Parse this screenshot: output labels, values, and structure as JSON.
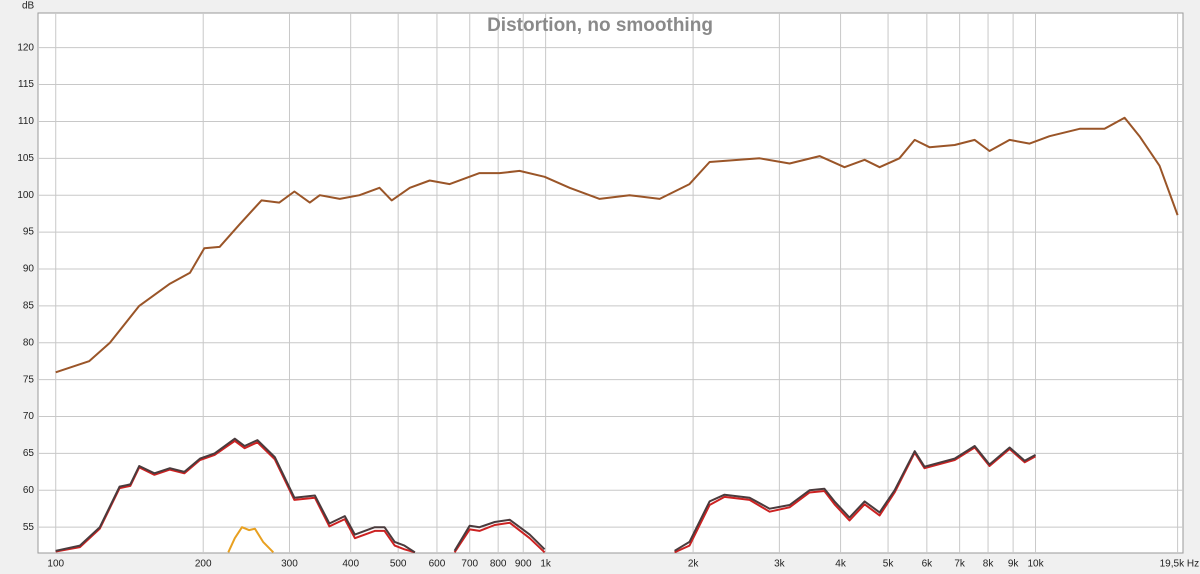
{
  "chart_data": {
    "type": "line",
    "title": "Distortion, no smoothing",
    "y_label": "dB",
    "log_x": true,
    "grid": true,
    "xlim": [
      92,
      20000
    ],
    "ylim": [
      51.5,
      124.7
    ],
    "xticks": [
      100,
      200,
      300,
      400,
      500,
      600,
      700,
      800,
      900,
      {
        "value": 1000,
        "label": "1k"
      },
      {
        "value": 2000,
        "label": "2k"
      },
      {
        "value": 3000,
        "label": "3k"
      },
      {
        "value": 4000,
        "label": "4k"
      },
      {
        "value": 5000,
        "label": "5k"
      },
      {
        "value": 6000,
        "label": "6k"
      },
      {
        "value": 7000,
        "label": "7k"
      },
      {
        "value": 8000,
        "label": "8k"
      },
      {
        "value": 9000,
        "label": "9k"
      },
      {
        "value": 10000,
        "label": "10k"
      },
      {
        "value": 19500,
        "label": "19,5k Hz"
      }
    ],
    "yticks": [
      55,
      60,
      65,
      70,
      75,
      80,
      85,
      90,
      95,
      100,
      105,
      110,
      115,
      120
    ],
    "series": [
      {
        "color": "#9a5528",
        "x": [
          100,
          117,
          129,
          148,
          171,
          188,
          201,
          216,
          237,
          263,
          286,
          307,
          330,
          346,
          380,
          417,
          458,
          485,
          528,
          580,
          637,
          733,
          806,
          885,
          995,
          1119,
          1289,
          1483,
          1709,
          1966,
          2161,
          2734,
          3147,
          3624,
          4074,
          4478,
          4806,
          5275,
          5666,
          6081,
          6839,
          7515,
          8054,
          8851,
          9725,
          10680,
          12310,
          13830,
          15200,
          16300,
          17910,
          19500
        ],
        "values": [
          76,
          77.5,
          80,
          85,
          88,
          89.5,
          92.8,
          93,
          96,
          99.3,
          99,
          100.5,
          99,
          100,
          99.5,
          100,
          101,
          99.3,
          101,
          102,
          101.5,
          103,
          103,
          103.3,
          102.5,
          101,
          99.5,
          100,
          99.5,
          101.5,
          104.5,
          105,
          104.3,
          105.3,
          103.8,
          104.8,
          103.8,
          105,
          107.5,
          106.5,
          106.8,
          107.5,
          106,
          107.5,
          107,
          108,
          109,
          109,
          110.5,
          108,
          104,
          97.3
        ]
      },
      {
        "color": "#cc2222",
        "x": [
          100,
          112,
          123,
          135,
          142,
          148,
          159,
          171,
          183,
          197,
          211,
          232,
          243,
          258,
          280,
          307,
          338,
          362,
          389,
          408,
          448,
          469,
          492,
          515,
          541,
          600,
          652,
          700,
          733,
          787,
          845,
          928,
          995,
          1400,
          1833,
          1966,
          2161,
          2318,
          2608,
          2865,
          3147,
          3456,
          3707,
          3887,
          4172,
          4478,
          4806,
          5157,
          5666,
          5934,
          6839,
          7515,
          8054,
          8851,
          9504,
          10000
        ],
        "values": [
          51.7,
          52.3,
          54.8,
          60.3,
          60.6,
          63.1,
          62.1,
          62.8,
          62.3,
          64.1,
          64.8,
          66.7,
          65.7,
          66.5,
          64.2,
          58.7,
          59,
          55.1,
          56.1,
          53.5,
          54.5,
          54.5,
          52.5,
          52,
          51.6,
          null,
          51.6,
          54.7,
          54.5,
          55.3,
          55.6,
          53.5,
          51.6,
          null,
          51.6,
          52.5,
          58,
          59.1,
          58.7,
          57.1,
          57.7,
          59.7,
          59.9,
          58.1,
          55.9,
          58.1,
          56.6,
          59.7,
          65.1,
          63,
          64.1,
          65.8,
          63.3,
          65.6,
          63.8,
          64.6
        ]
      },
      {
        "color": "#4a3b3d",
        "x": [
          100,
          112,
          123,
          135,
          142,
          148,
          159,
          171,
          183,
          197,
          211,
          232,
          243,
          258,
          280,
          307,
          338,
          362,
          389,
          408,
          448,
          469,
          492,
          515,
          541,
          600,
          652,
          700,
          733,
          787,
          845,
          928,
          995,
          1400,
          1833,
          1966,
          2161,
          2318,
          2608,
          2865,
          3147,
          3456,
          3707,
          3887,
          4172,
          4478,
          4806,
          5157,
          5666,
          5934,
          6839,
          7515,
          8054,
          8851,
          9504,
          10000
        ],
        "values": [
          51.8,
          52.5,
          55,
          60.5,
          60.8,
          63.3,
          62.3,
          63,
          62.5,
          64.3,
          65,
          67,
          66,
          66.8,
          64.5,
          59,
          59.3,
          55.5,
          56.5,
          54,
          55,
          55,
          53,
          52.5,
          51.6,
          null,
          51.8,
          55.2,
          55,
          55.7,
          56,
          54,
          52,
          null,
          51.8,
          53,
          58.5,
          59.4,
          59,
          57.5,
          58,
          60,
          60.2,
          58.5,
          56.3,
          58.5,
          57,
          60,
          65.3,
          63.2,
          64.3,
          66,
          63.5,
          65.8,
          64,
          64.8
        ]
      },
      {
        "color": "#e8a020",
        "x": [
          225,
          232,
          240,
          248,
          255,
          265,
          278
        ],
        "values": [
          51.6,
          53.5,
          55,
          54.6,
          54.8,
          53,
          51.6
        ]
      }
    ]
  }
}
